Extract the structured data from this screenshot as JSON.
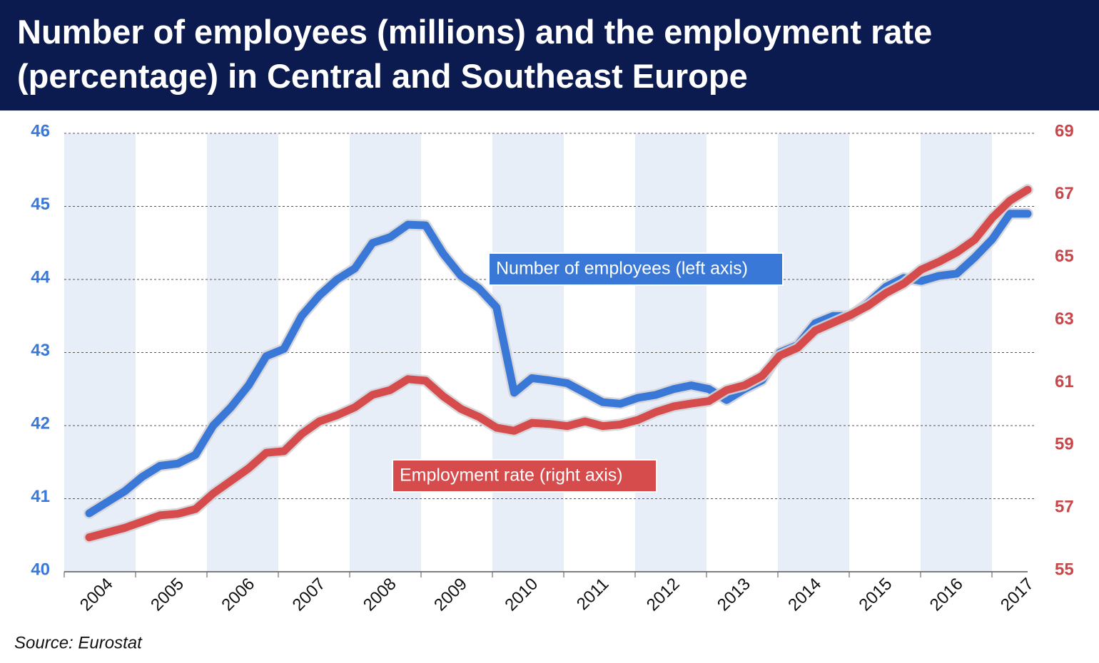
{
  "chart_data": {
    "type": "line",
    "title": "Number of employees (millions) and the employment rate (percentage) in Central and Southeast Europe",
    "categories": [
      "2004",
      null,
      null,
      null,
      "2005",
      null,
      null,
      null,
      "2006",
      null,
      null,
      null,
      "2007",
      null,
      null,
      null,
      "2008",
      null,
      null,
      null,
      "2009",
      null,
      null,
      null,
      "2010",
      null,
      null,
      null,
      "2011",
      null,
      null,
      null,
      "2012",
      null,
      null,
      null,
      "2013",
      null,
      null,
      null,
      "2014",
      null,
      null,
      null,
      "2015",
      null,
      null,
      null,
      "2016",
      null,
      null,
      null,
      "2017",
      null
    ],
    "series": [
      {
        "name": "Number of employees (left axis)",
        "color": "#3a78d8",
        "values": [
          40.8,
          40.95,
          41.1,
          41.3,
          41.45,
          41.48,
          41.6,
          42.0,
          42.25,
          42.55,
          42.95,
          43.05,
          43.5,
          43.78,
          44.0,
          44.15,
          44.5,
          44.58,
          44.75,
          44.74,
          44.35,
          44.05,
          43.88,
          43.62,
          42.45,
          42.65,
          42.62,
          42.58,
          42.45,
          42.32,
          42.3,
          42.38,
          42.42,
          42.5,
          42.55,
          42.5,
          42.35,
          42.5,
          42.62,
          43.0,
          43.1,
          43.4,
          43.5,
          43.5,
          43.68,
          43.9,
          44.02,
          43.98,
          44.05,
          44.08,
          44.3,
          44.55,
          44.9,
          44.9
        ]
      },
      {
        "name": "Employment rate (right axis)",
        "color": "#d64b4b",
        "axis": "y2",
        "values": [
          56.1,
          56.25,
          56.4,
          56.6,
          56.8,
          56.85,
          57.0,
          57.5,
          57.9,
          58.3,
          58.8,
          58.85,
          59.4,
          59.8,
          60.0,
          60.25,
          60.65,
          60.8,
          61.15,
          61.1,
          60.6,
          60.2,
          59.95,
          59.6,
          59.5,
          59.75,
          59.72,
          59.65,
          59.8,
          59.65,
          59.7,
          59.85,
          60.1,
          60.28,
          60.37,
          60.45,
          60.8,
          60.95,
          61.25,
          61.9,
          62.15,
          62.7,
          62.95,
          63.2,
          63.5,
          63.9,
          64.2,
          64.65,
          64.9,
          65.2,
          65.6,
          66.3,
          66.85,
          67.2
        ]
      }
    ],
    "ylim": [
      40,
      46
    ],
    "yticks": [
      40,
      41,
      42,
      43,
      44,
      45,
      46
    ],
    "y2lim": [
      55,
      69
    ],
    "y2ticks": [
      55,
      57,
      59,
      61,
      63,
      65,
      67,
      69
    ],
    "grid": true,
    "source": "Source: Eurostat"
  }
}
